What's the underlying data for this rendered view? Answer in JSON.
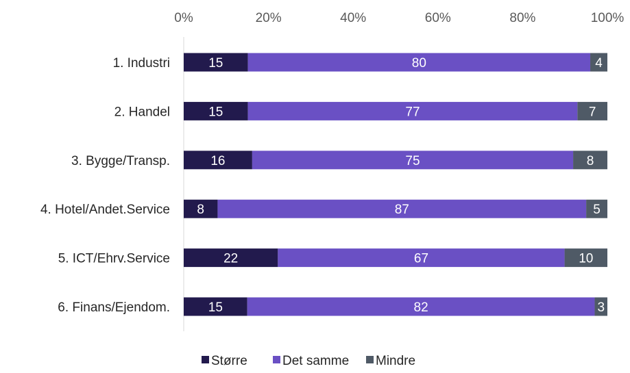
{
  "chart_data": {
    "type": "bar",
    "orientation": "horizontal",
    "stacked": "percent",
    "title": "",
    "xlabel": "",
    "ylabel": "",
    "xlim": [
      0,
      100
    ],
    "x_ticks": [
      "0%",
      "20%",
      "40%",
      "60%",
      "80%",
      "100%"
    ],
    "categories": [
      "1. Industri",
      "2. Handel",
      "3. Bygge/Transp.",
      "4. Hotel/Andet.Service",
      "5. ICT/Ehrv.Service",
      "6. Finans/Ejendom."
    ],
    "series": [
      {
        "name": "Større",
        "color": "#221a4d",
        "values": [
          15,
          15,
          16,
          8,
          22,
          15
        ]
      },
      {
        "name": "Det samme",
        "color": "#6a50c4",
        "values": [
          80,
          77,
          75,
          87,
          67,
          82
        ]
      },
      {
        "name": "Mindre",
        "color": "#4f5a66",
        "values": [
          4,
          7,
          8,
          5,
          10,
          3
        ]
      }
    ],
    "legend_position": "bottom",
    "grid": false
  }
}
